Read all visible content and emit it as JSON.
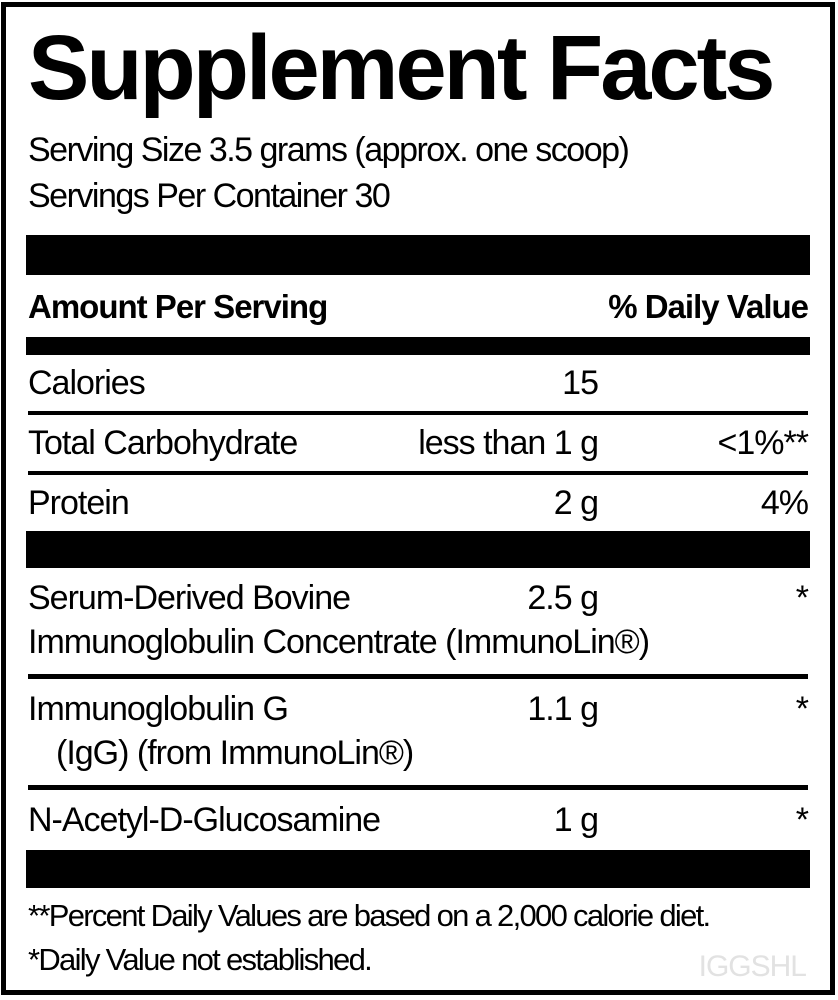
{
  "label": {
    "title": "Supplement Facts",
    "serving_size": "Serving Size 3.5 grams (approx. one scoop)",
    "servings_per_container": "Servings Per Container 30",
    "columns": {
      "amount_header": "Amount Per Serving",
      "daily_value_header": "% Daily Value"
    },
    "nutrients": [
      {
        "name": "Calories",
        "amount": "15",
        "dv": ""
      },
      {
        "name": "Total Carbohydrate",
        "amount": "less than 1 g",
        "dv": "<1%**"
      },
      {
        "name": "Protein",
        "amount": "2 g",
        "dv": "4%"
      }
    ],
    "ingredients": [
      {
        "name": "Serum-Derived Bovine",
        "name_line2": "Immunoglobulin Concentrate (ImmunoLin®)",
        "amount": "2.5 g",
        "dv": "*"
      },
      {
        "name": "Immunoglobulin G",
        "name_line2": "(IgG) (from ImmunoLin®)",
        "amount": "1.1 g",
        "dv": "*"
      },
      {
        "name": "N-Acetyl-D-Glucosamine",
        "name_line2": "",
        "amount": "1 g",
        "dv": "*"
      }
    ],
    "footnotes": [
      "**Percent Daily Values are based on a 2,000 calorie diet.",
      "*Daily Value not established."
    ],
    "watermark": "IGGSHL",
    "colors": {
      "text": "#000000",
      "background": "#ffffff",
      "watermark": "#e2e2e2"
    }
  }
}
